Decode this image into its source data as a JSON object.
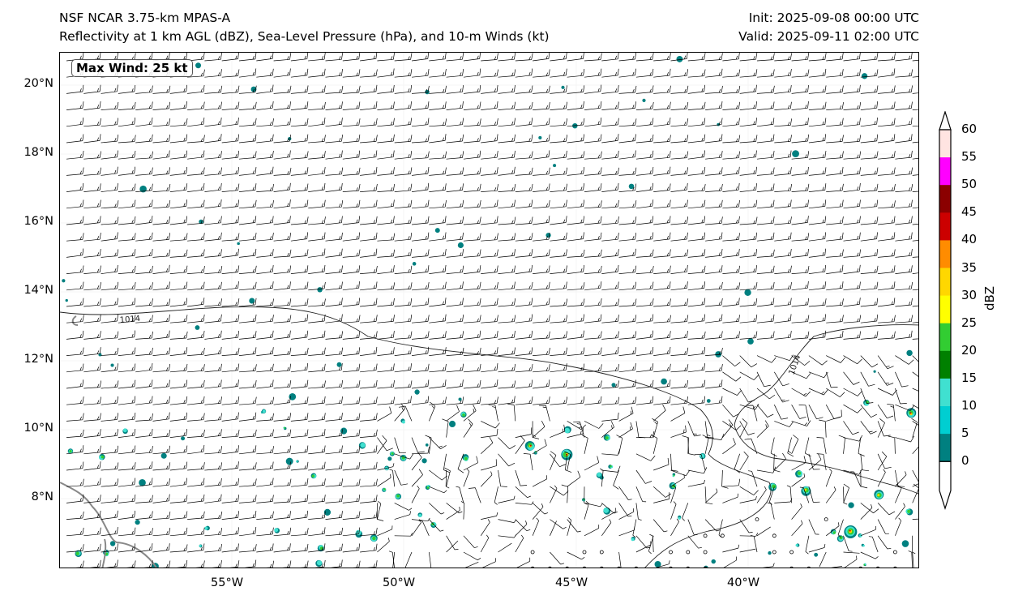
{
  "header": {
    "title_left_1": "NSF NCAR 3.75-km MPAS-A",
    "title_left_2": "Reflectivity at 1 km AGL (dBZ), Sea-Level Pressure (hPa), and 10-m Winds (kt)",
    "init": "Init: 2025-09-08 00:00 UTC",
    "valid": "Valid: 2025-09-11 02:00 UTC"
  },
  "map": {
    "max_wind_label": "Max Wind: 25 kt",
    "contour_label": "1014",
    "lat_ticks": [
      "20°N",
      "18°N",
      "16°N",
      "14°N",
      "12°N",
      "10°N",
      "8°N"
    ],
    "lon_ticks": [
      "55°W",
      "50°W",
      "45°W",
      "40°W"
    ],
    "lon_range": [
      -60,
      -35
    ],
    "lat_range": [
      5.95,
      20.95
    ]
  },
  "colorbar": {
    "label": "dBZ",
    "ticks": [
      "60",
      "55",
      "50",
      "45",
      "40",
      "35",
      "30",
      "25",
      "20",
      "15",
      "10",
      "5",
      "0"
    ],
    "colors": [
      "#008080",
      "#00ced1",
      "#40e0d0",
      "#008000",
      "#32cd32",
      "#ffff00",
      "#ffd700",
      "#ff8c00",
      "#cc0000",
      "#8b0000",
      "#ff00ff",
      "#ffe4e1"
    ]
  }
}
